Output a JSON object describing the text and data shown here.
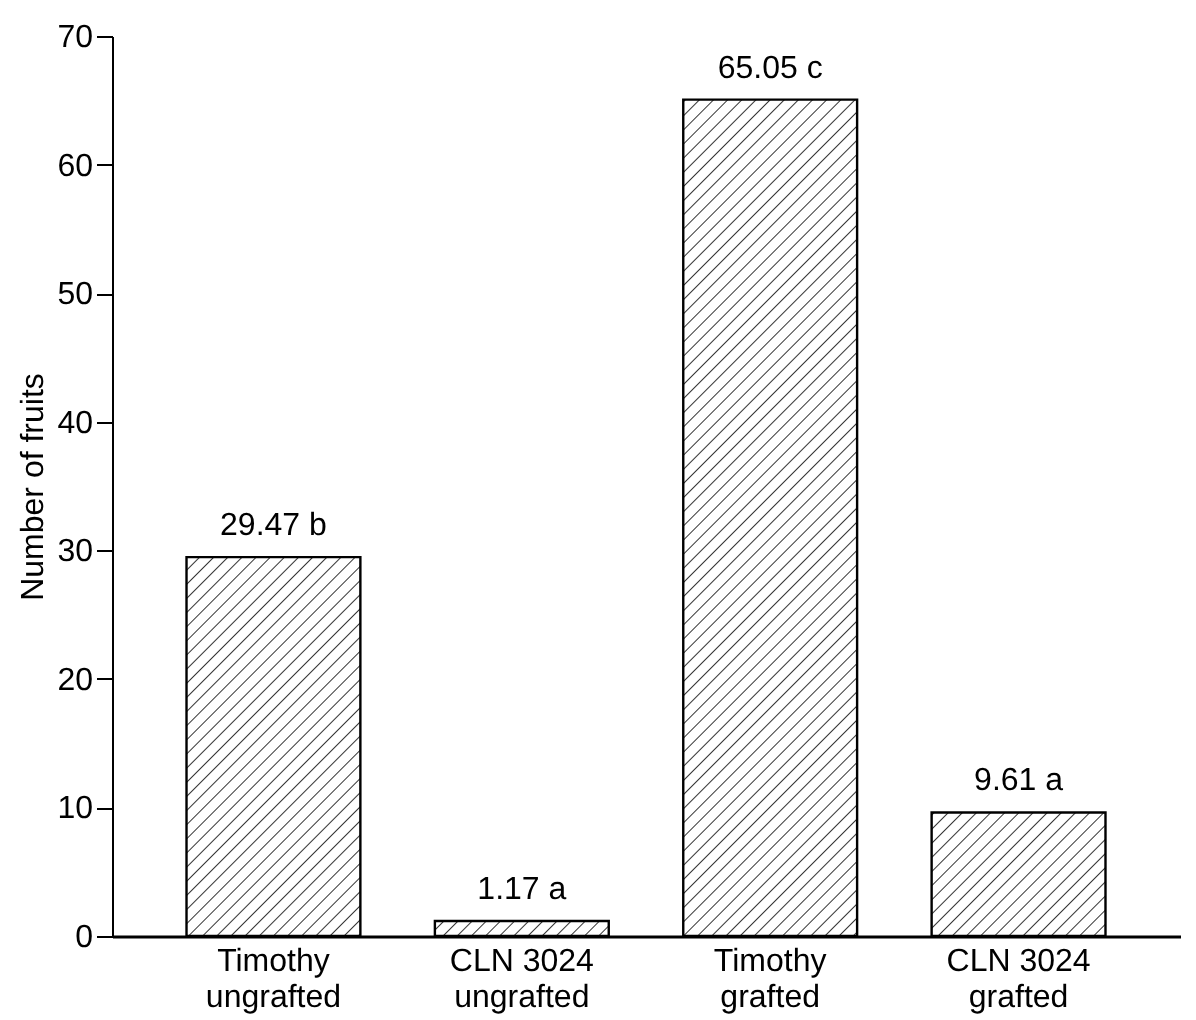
{
  "chart_data": {
    "type": "bar",
    "ylabel": "Number of fruits",
    "categories": [
      "Timothy ungrafted",
      "CLN 3024 ungrafted",
      "Timothy grafted",
      "CLN 3024 grafted"
    ],
    "values": [
      29.47,
      1.17,
      65.05,
      9.61
    ],
    "value_labels": [
      "29.47  b",
      "1.17  a",
      "65.05  c",
      "9.61  a"
    ],
    "color": "#000000",
    "ylim": [
      0,
      70
    ],
    "yticks": [
      0,
      10,
      20,
      30,
      40,
      50,
      60,
      70
    ],
    "grid": false
  }
}
